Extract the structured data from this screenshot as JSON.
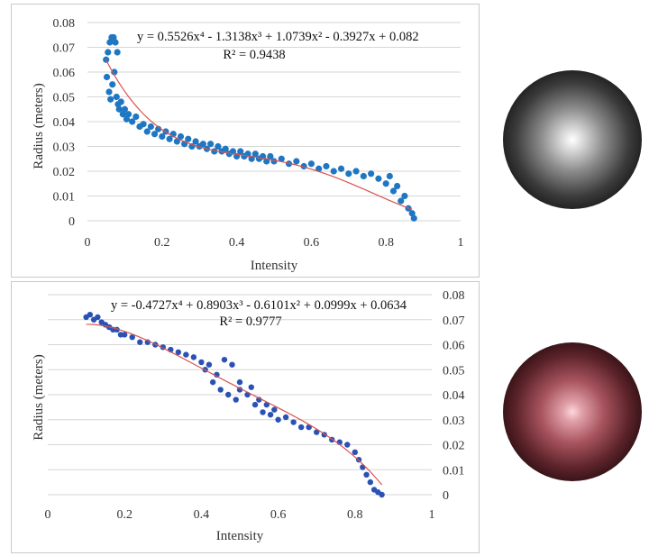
{
  "charts": [
    {
      "equation": "y = 0.5526x⁴ - 1.3138x³ + 1.0739x² - 0.3927x + 0.082",
      "r_squared": "R² = 0.9438",
      "xlabel": "Intensity",
      "ylabel": "Radius (meters)",
      "x_ticks": [
        "0",
        "0.2",
        "0.4",
        "0.6",
        "0.8",
        "1"
      ],
      "y_ticks": [
        "0",
        "0.01",
        "0.02",
        "0.03",
        "0.04",
        "0.05",
        "0.06",
        "0.07",
        "0.08"
      ],
      "point_color": "#1f77c4",
      "trend_color": "#d9534f"
    },
    {
      "equation": "y = -0.4727x⁴ + 0.8903x³ - 0.6101x² + 0.0999x + 0.0634",
      "r_squared": "R² = 0.9777",
      "xlabel": "Intensity",
      "ylabel": "Radius (meters)",
      "x_ticks": [
        "0",
        "0.2",
        "0.4",
        "0.6",
        "0.8",
        "1"
      ],
      "y_ticks": [
        "0",
        "0.01",
        "0.02",
        "0.03",
        "0.04",
        "0.05",
        "0.06",
        "0.07",
        "0.08"
      ],
      "point_color": "#2a52b4",
      "trend_color": "#d9534f"
    }
  ],
  "chart_data": [
    {
      "type": "scatter",
      "xlabel": "Intensity",
      "ylabel": "Radius (meters)",
      "xlim": [
        0,
        1
      ],
      "ylim": [
        0,
        0.08
      ],
      "grid": "horizontal",
      "y_axis_side": "left",
      "trendline": {
        "kind": "polynomial",
        "order": 4,
        "coefficients": [
          0.5526,
          -1.3138,
          1.0739,
          -0.3927,
          0.082
        ],
        "x_range": [
          0.05,
          0.87
        ],
        "label": "y = 0.5526x⁴ - 1.3138x³ + 1.0739x² - 0.3927x + 0.082",
        "r2": 0.9438
      },
      "points": [
        [
          0.05,
          0.065
        ],
        [
          0.052,
          0.058
        ],
        [
          0.055,
          0.068
        ],
        [
          0.058,
          0.052
        ],
        [
          0.06,
          0.072
        ],
        [
          0.062,
          0.049
        ],
        [
          0.065,
          0.074
        ],
        [
          0.067,
          0.055
        ],
        [
          0.07,
          0.074
        ],
        [
          0.072,
          0.06
        ],
        [
          0.075,
          0.072
        ],
        [
          0.078,
          0.05
        ],
        [
          0.08,
          0.068
        ],
        [
          0.082,
          0.047
        ],
        [
          0.085,
          0.045
        ],
        [
          0.09,
          0.048
        ],
        [
          0.095,
          0.043
        ],
        [
          0.1,
          0.045
        ],
        [
          0.105,
          0.041
        ],
        [
          0.11,
          0.043
        ],
        [
          0.12,
          0.04
        ],
        [
          0.13,
          0.042
        ],
        [
          0.14,
          0.038
        ],
        [
          0.15,
          0.039
        ],
        [
          0.16,
          0.036
        ],
        [
          0.17,
          0.038
        ],
        [
          0.18,
          0.035
        ],
        [
          0.19,
          0.037
        ],
        [
          0.2,
          0.034
        ],
        [
          0.21,
          0.036
        ],
        [
          0.22,
          0.033
        ],
        [
          0.23,
          0.035
        ],
        [
          0.24,
          0.032
        ],
        [
          0.25,
          0.034
        ],
        [
          0.26,
          0.031
        ],
        [
          0.27,
          0.033
        ],
        [
          0.28,
          0.03
        ],
        [
          0.29,
          0.032
        ],
        [
          0.3,
          0.03
        ],
        [
          0.31,
          0.031
        ],
        [
          0.32,
          0.029
        ],
        [
          0.33,
          0.031
        ],
        [
          0.34,
          0.028
        ],
        [
          0.35,
          0.03
        ],
        [
          0.36,
          0.028
        ],
        [
          0.37,
          0.029
        ],
        [
          0.38,
          0.027
        ],
        [
          0.39,
          0.028
        ],
        [
          0.4,
          0.026
        ],
        [
          0.41,
          0.028
        ],
        [
          0.42,
          0.026
        ],
        [
          0.43,
          0.027
        ],
        [
          0.44,
          0.025
        ],
        [
          0.45,
          0.027
        ],
        [
          0.46,
          0.025
        ],
        [
          0.47,
          0.026
        ],
        [
          0.48,
          0.024
        ],
        [
          0.49,
          0.026
        ],
        [
          0.5,
          0.024
        ],
        [
          0.52,
          0.025
        ],
        [
          0.54,
          0.023
        ],
        [
          0.56,
          0.024
        ],
        [
          0.58,
          0.022
        ],
        [
          0.6,
          0.023
        ],
        [
          0.62,
          0.021
        ],
        [
          0.64,
          0.022
        ],
        [
          0.66,
          0.02
        ],
        [
          0.68,
          0.021
        ],
        [
          0.7,
          0.019
        ],
        [
          0.72,
          0.02
        ],
        [
          0.74,
          0.018
        ],
        [
          0.76,
          0.019
        ],
        [
          0.78,
          0.017
        ],
        [
          0.8,
          0.015
        ],
        [
          0.81,
          0.018
        ],
        [
          0.82,
          0.012
        ],
        [
          0.83,
          0.014
        ],
        [
          0.84,
          0.008
        ],
        [
          0.85,
          0.01
        ],
        [
          0.86,
          0.005
        ],
        [
          0.87,
          0.003
        ],
        [
          0.875,
          0.001
        ]
      ]
    },
    {
      "type": "scatter",
      "xlabel": "Intensity",
      "ylabel": "Radius (meters)",
      "xlim": [
        0,
        1
      ],
      "ylim": [
        0,
        0.08
      ],
      "grid": "horizontal",
      "y_axis_side": "right",
      "trendline": {
        "kind": "polynomial",
        "order": 4,
        "coefficients": [
          -0.4727,
          0.8903,
          -0.6101,
          0.0999,
          0.0634
        ],
        "x_range": [
          0.1,
          0.87
        ],
        "label": "y = -0.4727x⁴ + 0.8903x³ - 0.6101x² + 0.0999x + 0.0634",
        "r2": 0.9777
      },
      "points": [
        [
          0.1,
          0.071
        ],
        [
          0.11,
          0.072
        ],
        [
          0.12,
          0.07
        ],
        [
          0.13,
          0.071
        ],
        [
          0.14,
          0.069
        ],
        [
          0.15,
          0.068
        ],
        [
          0.16,
          0.067
        ],
        [
          0.17,
          0.066
        ],
        [
          0.18,
          0.066
        ],
        [
          0.19,
          0.064
        ],
        [
          0.2,
          0.064
        ],
        [
          0.22,
          0.063
        ],
        [
          0.24,
          0.061
        ],
        [
          0.26,
          0.061
        ],
        [
          0.28,
          0.06
        ],
        [
          0.3,
          0.059
        ],
        [
          0.32,
          0.058
        ],
        [
          0.34,
          0.057
        ],
        [
          0.36,
          0.056
        ],
        [
          0.38,
          0.055
        ],
        [
          0.4,
          0.053
        ],
        [
          0.41,
          0.05
        ],
        [
          0.42,
          0.052
        ],
        [
          0.43,
          0.045
        ],
        [
          0.44,
          0.048
        ],
        [
          0.45,
          0.042
        ],
        [
          0.46,
          0.054
        ],
        [
          0.47,
          0.04
        ],
        [
          0.48,
          0.052
        ],
        [
          0.49,
          0.038
        ],
        [
          0.5,
          0.045
        ],
        [
          0.5,
          0.042
        ],
        [
          0.52,
          0.04
        ],
        [
          0.53,
          0.043
        ],
        [
          0.54,
          0.036
        ],
        [
          0.55,
          0.038
        ],
        [
          0.56,
          0.033
        ],
        [
          0.57,
          0.036
        ],
        [
          0.58,
          0.032
        ],
        [
          0.59,
          0.034
        ],
        [
          0.6,
          0.03
        ],
        [
          0.62,
          0.031
        ],
        [
          0.64,
          0.029
        ],
        [
          0.66,
          0.027
        ],
        [
          0.68,
          0.027
        ],
        [
          0.7,
          0.025
        ],
        [
          0.72,
          0.024
        ],
        [
          0.74,
          0.022
        ],
        [
          0.76,
          0.021
        ],
        [
          0.78,
          0.02
        ],
        [
          0.8,
          0.017
        ],
        [
          0.81,
          0.014
        ],
        [
          0.82,
          0.011
        ],
        [
          0.83,
          0.008
        ],
        [
          0.84,
          0.005
        ],
        [
          0.85,
          0.002
        ],
        [
          0.86,
          0.001
        ],
        [
          0.87,
          0.0
        ]
      ]
    }
  ]
}
